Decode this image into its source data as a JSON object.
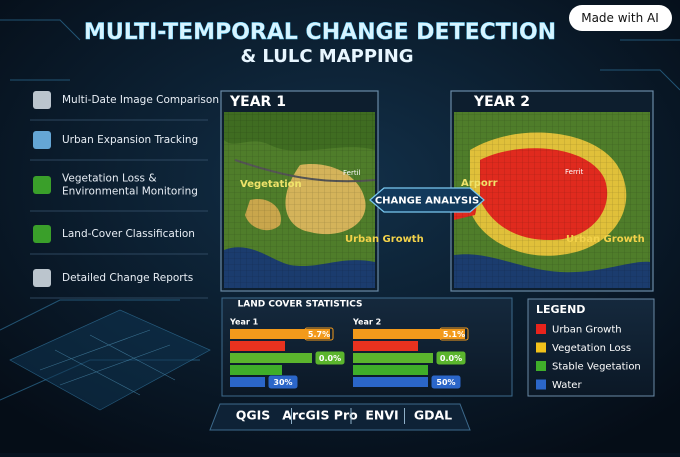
{
  "badge": "Made with AI",
  "header": {
    "title": "MULTI-TEMPORAL CHANGE DETECTION",
    "subtitle": "& LULC MAPPING"
  },
  "features": [
    {
      "lines": [
        "Multi-Date Image Comparison"
      ]
    },
    {
      "lines": [
        "Urban Expansion Tracking"
      ]
    },
    {
      "lines": [
        "Vegetation Loss &",
        "Environmental Monitoring"
      ]
    },
    {
      "lines": [
        "Land-Cover Classification"
      ]
    },
    {
      "lines": [
        "Detailed Change Reports"
      ]
    }
  ],
  "maps": [
    {
      "title": "YEAR 1",
      "labels": [
        "Vegetation",
        "Urban Growth",
        "Fertil"
      ]
    },
    {
      "title": "YEAR 2",
      "labels": [
        "Arporr",
        "Urban Growth",
        "Ferrit"
      ]
    }
  ],
  "change_analysis": "CHANGE ANALYSIS",
  "stats": {
    "title": "LAND COVER STATISTICS",
    "groups": [
      {
        "name": "Year 1",
        "labels": [
          "5.7%",
          "0.0%",
          "30%"
        ]
      },
      {
        "name": "Year 2",
        "labels": [
          "5.1%",
          "0.0%",
          "50%"
        ]
      }
    ]
  },
  "legend": {
    "title": "LEGEND",
    "items": [
      {
        "label": "Urban Growth",
        "color": "#e8231c"
      },
      {
        "label": "Vegetation Loss",
        "color": "#f2c21b"
      },
      {
        "label": "Stable Vegetation",
        "color": "#3fae2a"
      },
      {
        "label": "Water",
        "color": "#2b66c9"
      }
    ]
  },
  "tools": [
    "QGIS",
    "ArcGIS Pro",
    "ENVI",
    "GDAL"
  ]
}
